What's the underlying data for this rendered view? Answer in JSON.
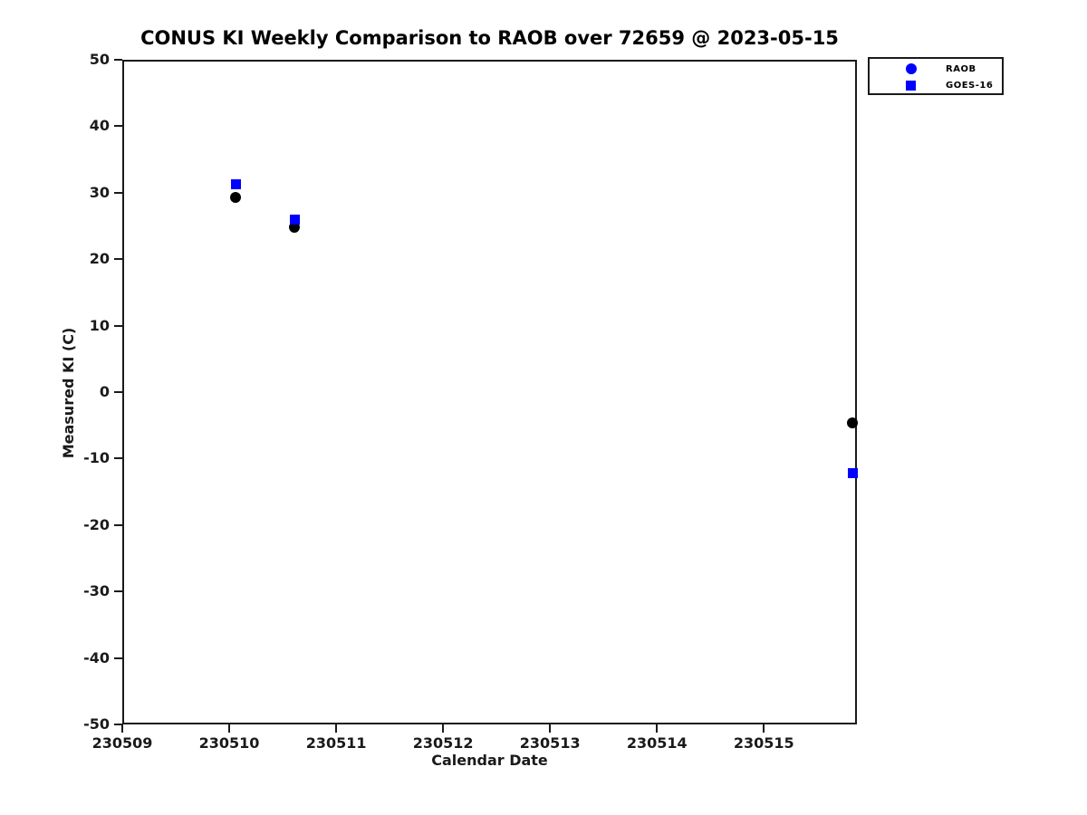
{
  "chart_data": {
    "type": "scatter",
    "title": "CONUS KI Weekly Comparison to RAOB over 72659 @ 2023-05-15",
    "xlabel": "Calendar Date",
    "ylabel": "Measured KI (C)",
    "xlim": [
      230509,
      230515.87
    ],
    "ylim": [
      -50,
      50
    ],
    "xticks": [
      230509,
      230510,
      230511,
      230512,
      230513,
      230514,
      230515
    ],
    "yticks": [
      -50,
      -40,
      -30,
      -20,
      -10,
      0,
      10,
      20,
      30,
      40,
      50
    ],
    "grid": false,
    "background_color": "#ffffff",
    "axis_color": "#1a1a1a",
    "legend": {
      "position": "outside-top-right",
      "entries": [
        {
          "label": "RAOB",
          "marker": "circle",
          "marker_color": "#0000ff"
        },
        {
          "label": "GOES-16",
          "marker": "square",
          "marker_color": "#0000ff"
        }
      ]
    },
    "series": [
      {
        "name": "RAOB",
        "marker": "circle",
        "color": "#000000",
        "points": [
          {
            "x": 230510.06,
            "y": 29.3
          },
          {
            "x": 230510.61,
            "y": 24.8
          },
          {
            "x": 230515.83,
            "y": -4.7
          }
        ]
      },
      {
        "name": "GOES-16",
        "marker": "square",
        "color": "#0000ff",
        "points": [
          {
            "x": 230510.06,
            "y": 31.3
          },
          {
            "x": 230510.61,
            "y": 25.9
          },
          {
            "x": 230515.83,
            "y": -12.2
          }
        ]
      }
    ]
  }
}
